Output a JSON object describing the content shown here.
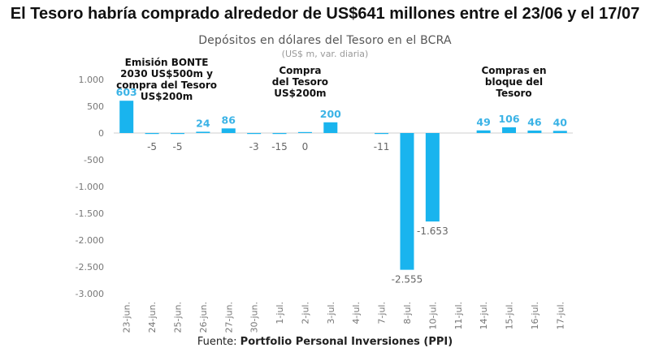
{
  "headline": "El Tesoro habría comprado alrededor de US$641 millones entre el 23/06 y el 17/07",
  "source_prefix": "Fuente: ",
  "source_name": "Portfolio Personal Inversiones (PPI)",
  "colors": {
    "bar": "#19b4ee",
    "positive_label": "#3bb3e6",
    "negative_label": "#666666"
  },
  "chart_data": {
    "type": "bar",
    "title": "Depósitos en dólares del Tesoro en el BCRA",
    "subtitle": "(US$ m, var. diaria)",
    "categories": [
      "23-jun.",
      "24-jun.",
      "25-jun.",
      "26-jun.",
      "27-jun.",
      "30-jun.",
      "1-jul.",
      "2-jul.",
      "3-jul.",
      "4-jul.",
      "7-jul.",
      "8-jul.",
      "10-jul.",
      "11-jul.",
      "14-jul.",
      "15-jul.",
      "16-jul.",
      "17-jul."
    ],
    "values": [
      603,
      -5,
      -5,
      24,
      86,
      -3,
      -15,
      0,
      200,
      null,
      -11,
      -2555,
      -1653,
      null,
      49,
      106,
      46,
      40
    ],
    "data_labels": [
      "603",
      "-5",
      "-5",
      "24",
      "86",
      "-3",
      "-15",
      "0",
      "200",
      "",
      "-11",
      "-2.555",
      "-1.653",
      "",
      "49",
      "106",
      "46",
      "40"
    ],
    "yticks": [
      1000,
      500,
      0,
      -500,
      -1000,
      -1500,
      -2000,
      -2500,
      -3000
    ],
    "ytick_labels": [
      "1.000",
      "500",
      "0",
      "-500",
      "-1.000",
      "-1.500",
      "-2.000",
      "-2.500",
      "-3.000"
    ],
    "ylim": [
      -3000,
      1000
    ],
    "grid": false,
    "annotations": [
      {
        "text_lines": [
          "Emisión BONTE",
          "2030 US$500m y",
          "compra del Tesoro",
          "US$200m"
        ],
        "near": "24-jun."
      },
      {
        "text_lines": [
          "Compra",
          "del Tesoro",
          "US$200m"
        ],
        "near": "2-jul."
      },
      {
        "text_lines": [
          "Compras en",
          "bloque del",
          "Tesoro"
        ],
        "near": "15-jul."
      }
    ]
  }
}
